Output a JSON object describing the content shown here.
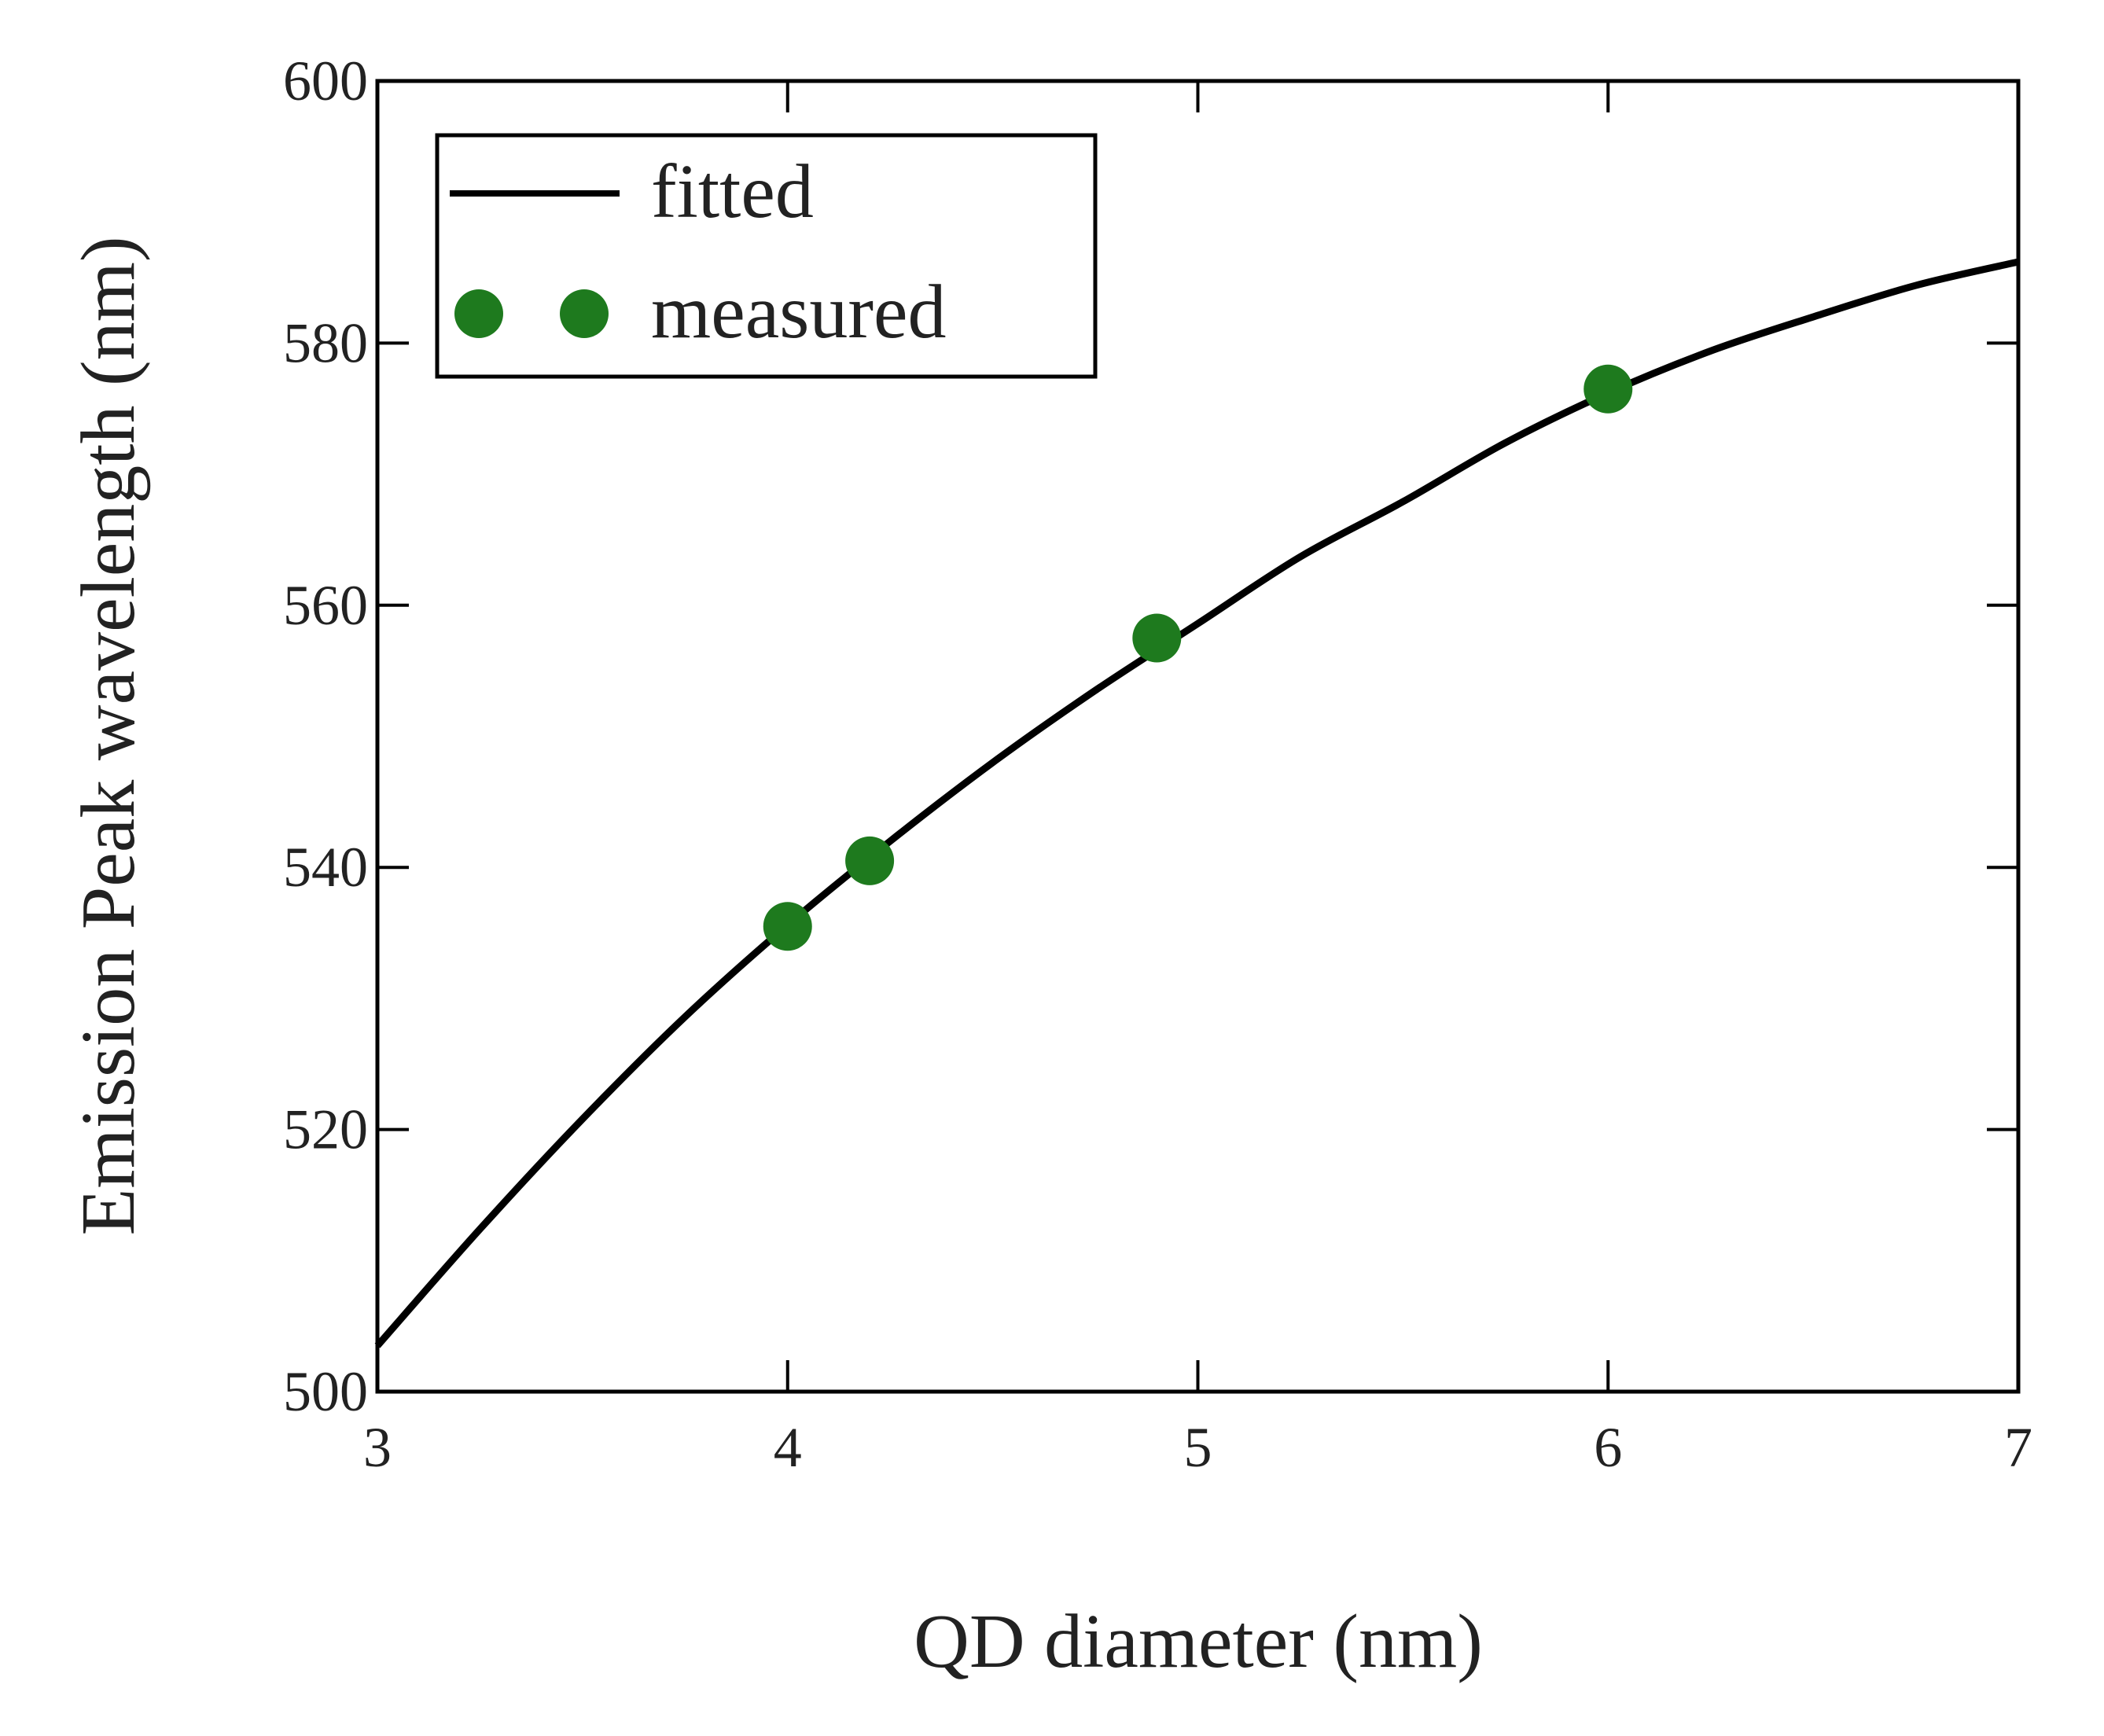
{
  "chart_data": {
    "type": "line",
    "title": "",
    "xlabel": "QD diameter (nm)",
    "ylabel": "Emission Peak wavelength (nm)",
    "xlim": [
      3,
      7
    ],
    "ylim": [
      500,
      600
    ],
    "xticks": [
      "3",
      "4",
      "5",
      "6",
      "7"
    ],
    "yticks": [
      "500",
      "520",
      "540",
      "560",
      "580",
      "600"
    ],
    "grid": false,
    "legend_position": "top-left",
    "series": [
      {
        "name": "fitted",
        "type": "line",
        "color": "#000000",
        "x": [
          3.0,
          3.25,
          3.5,
          3.75,
          4.0,
          4.25,
          4.5,
          4.75,
          5.0,
          5.25,
          5.5,
          5.75,
          6.0,
          6.25,
          6.5,
          6.75,
          7.0
        ],
        "y": [
          503.5,
          512.4,
          520.8,
          528.6,
          535.6,
          542.0,
          548.0,
          553.5,
          558.6,
          563.7,
          567.9,
          572.4,
          576.2,
          579.4,
          582.0,
          584.4,
          586.2
        ]
      },
      {
        "name": "measured",
        "type": "scatter",
        "color": "#1e7a1e",
        "x": [
          4.0,
          4.2,
          4.9,
          6.0
        ],
        "y": [
          535.5,
          540.5,
          557.5,
          576.5
        ]
      }
    ]
  }
}
